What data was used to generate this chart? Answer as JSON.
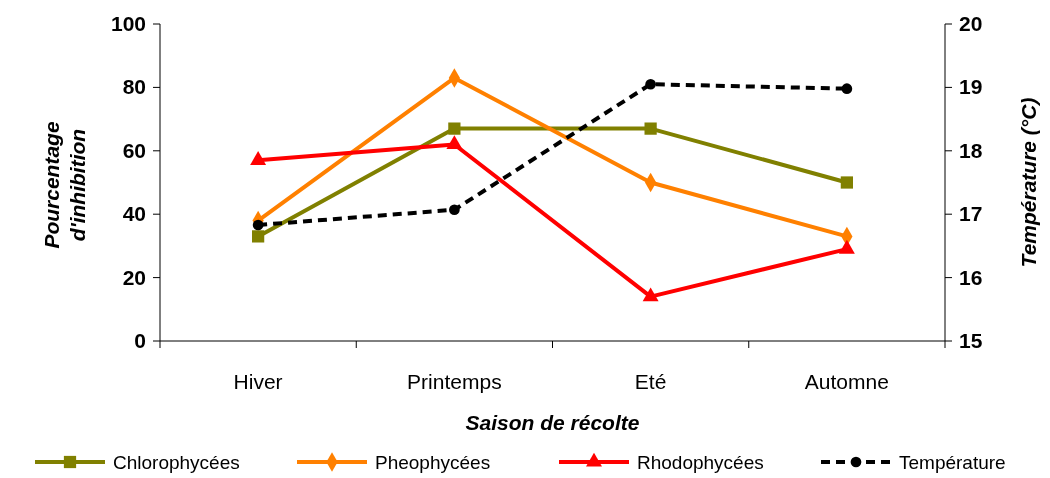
{
  "chart_data": {
    "type": "line",
    "xlabel": "Saison de récolte",
    "ylabel": "Pourcentage d'inhibition",
    "y2label": "Température (°C)",
    "categories": [
      "Hiver",
      "Printemps",
      "Eté",
      "Automne"
    ],
    "ylim": [
      0,
      100
    ],
    "yticks": [
      0,
      20,
      40,
      60,
      80,
      100
    ],
    "y2lim": [
      15,
      20
    ],
    "y2ticks": [
      15,
      16,
      17,
      18,
      19,
      20
    ],
    "grid": false,
    "legend": "bottom",
    "series": [
      {
        "name": "Chlorophycées",
        "color": "#808000",
        "marker": "square",
        "line_style": "solid",
        "values": [
          33,
          67,
          67,
          50
        ]
      },
      {
        "name": "Pheophycées",
        "color": "#ff8000",
        "marker": "diamond",
        "line_style": "solid",
        "values": [
          38,
          83,
          50,
          33
        ]
      },
      {
        "name": "Rhodophycées",
        "color": "#ff0000",
        "marker": "triangle",
        "line_style": "solid",
        "values": [
          57,
          62,
          14,
          29
        ]
      },
      {
        "name": "Température",
        "color": "#000000",
        "marker": "circle",
        "line_style": "dashed",
        "axis": "y2",
        "values": [
          16.83,
          17.07,
          19.05,
          18.98
        ]
      }
    ]
  }
}
